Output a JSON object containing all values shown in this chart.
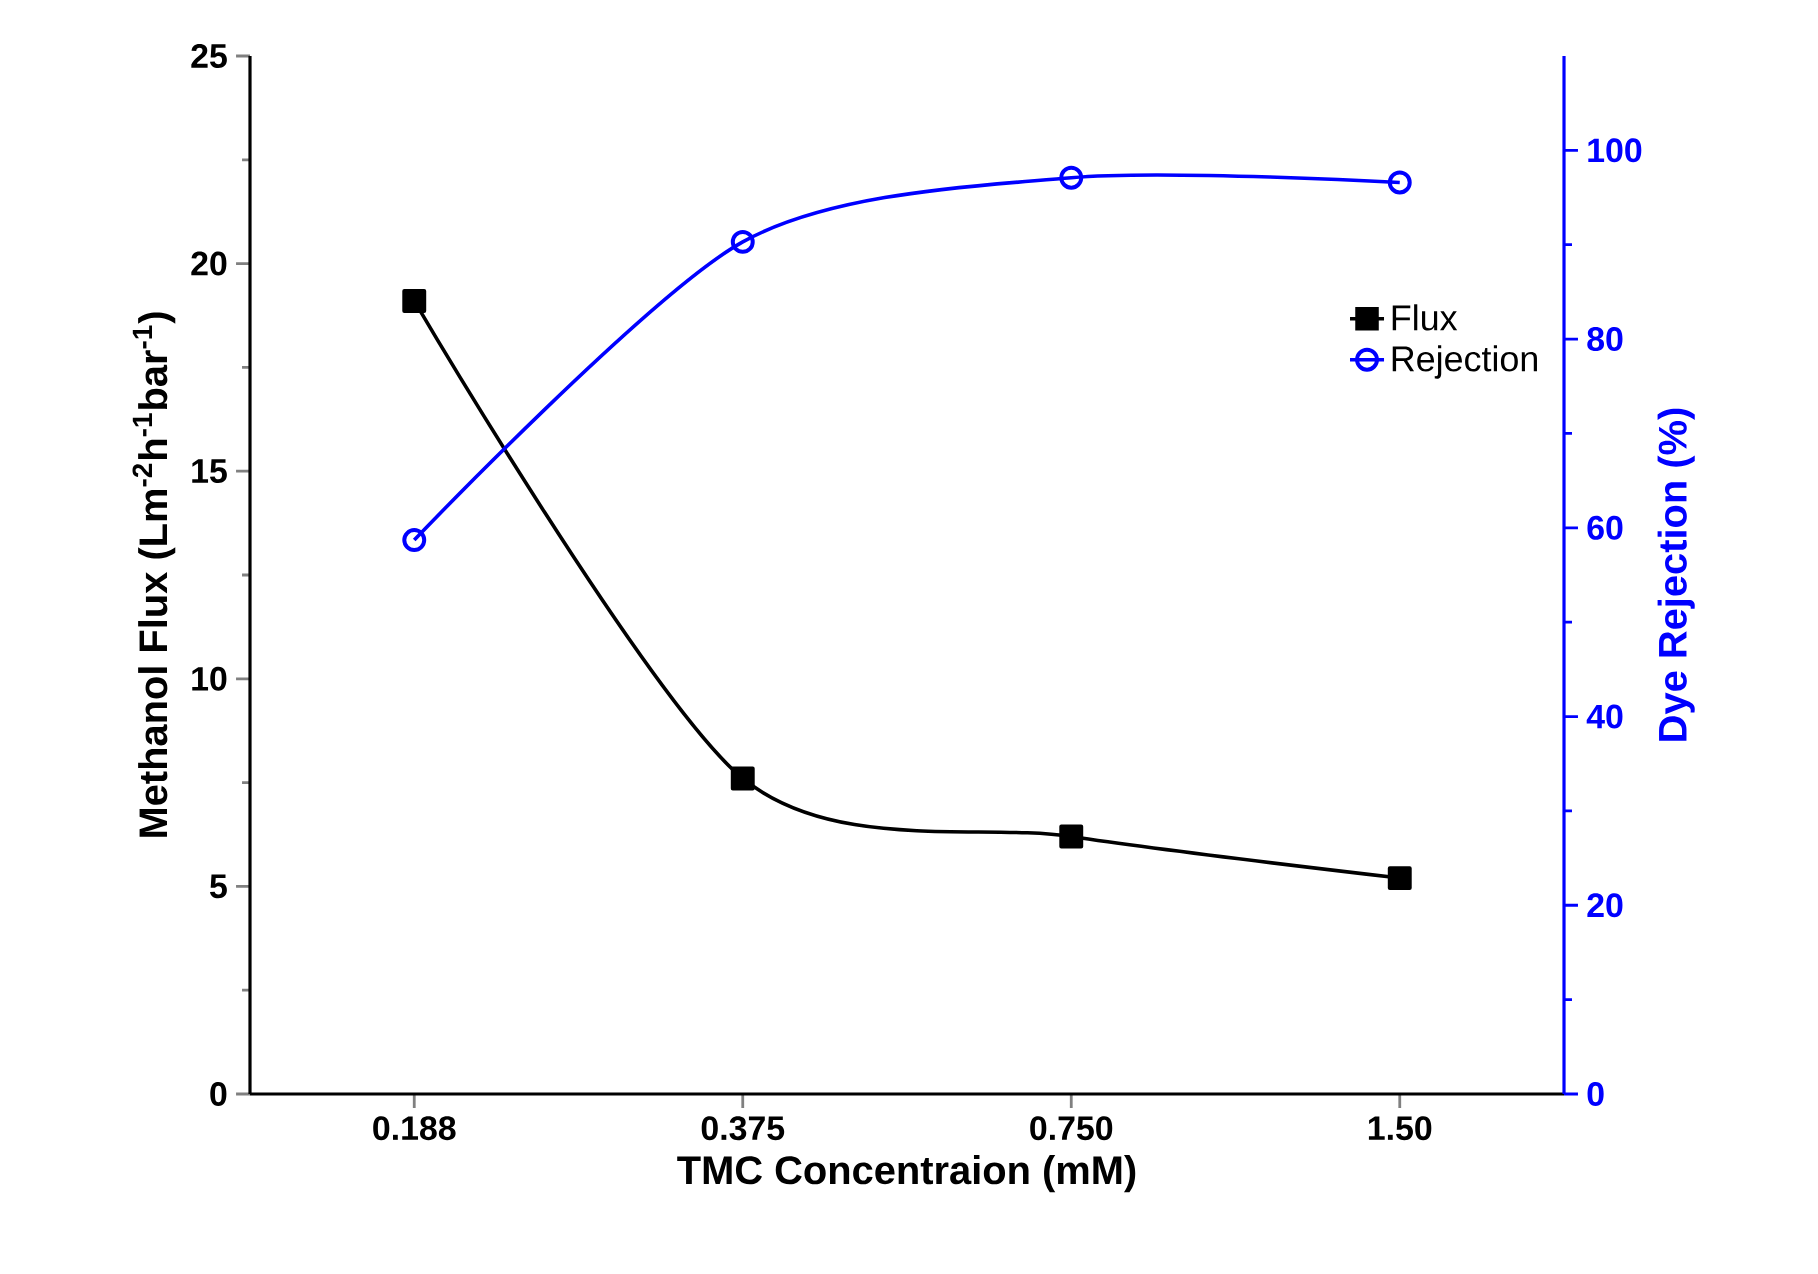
{
  "chart_data": {
    "type": "line",
    "xlabel": "TMC Concentraion (mM)",
    "ylabel": "Methanol Flux (Lm$^{-2}$h$^{-1}$bar$^{-1}$)",
    "y2label": "Dye Rejection (%)",
    "categories": [
      "0.188",
      "0.375",
      "0.750",
      "1.50"
    ],
    "series": [
      {
        "name": "Flux",
        "color": "#000000",
        "marker": "square",
        "values": [
          19.1,
          7.6,
          6.2,
          5.2
        ]
      },
      {
        "name": "Rejection",
        "color": "#0000ff",
        "marker": "circle",
        "axis": "y2",
        "values": [
          58.7,
          90.3,
          97.1,
          96.6
        ]
      }
    ],
    "ylim": [
      0,
      25
    ],
    "yticks": [
      0,
      5,
      10,
      15,
      20,
      25
    ],
    "y2lim": [
      0,
      110
    ],
    "y2ticks": [
      0,
      20,
      40,
      60,
      80,
      100
    ],
    "legend": "top right",
    "grid": false
  }
}
